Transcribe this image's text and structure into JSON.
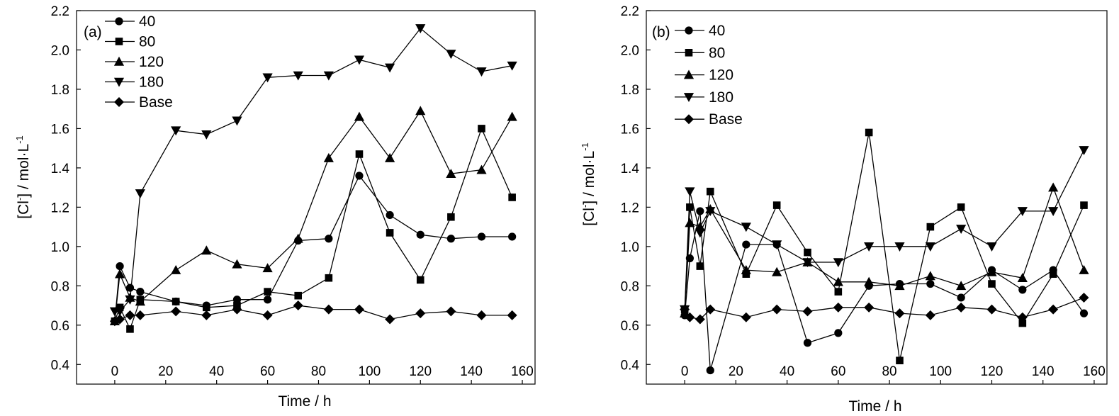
{
  "chart_data": [
    {
      "panel_label": "(a)",
      "type": "line",
      "xlabel": "Time / h",
      "ylabel": "[Cl⁻] / mol·L⁻¹",
      "ylabel_main": "[Cl",
      "ylabel_sup": "-",
      "ylabel_mid": "] / mol·L",
      "ylabel_sup2": "-1",
      "xlim": [
        -15,
        165
      ],
      "ylim": [
        0.3,
        2.2
      ],
      "xticks": [
        "0",
        "20",
        "40",
        "60",
        "80",
        "100",
        "120",
        "140",
        "160"
      ],
      "yticks": [
        "0.4",
        "0.6",
        "0.8",
        "1.0",
        "1.2",
        "1.4",
        "1.6",
        "1.8",
        "2.0",
        "2.2"
      ],
      "legend_position": "top-left",
      "series": [
        {
          "name": "40",
          "marker": "circle",
          "x": [
            0,
            2,
            6,
            10,
            24,
            36,
            48,
            60,
            72,
            84,
            96,
            108,
            120,
            132,
            144,
            156
          ],
          "values": [
            0.62,
            0.9,
            0.79,
            0.77,
            0.72,
            0.7,
            0.73,
            0.73,
            1.03,
            1.04,
            1.36,
            1.16,
            1.06,
            1.04,
            1.05,
            1.05
          ]
        },
        {
          "name": "80",
          "marker": "square",
          "x": [
            0,
            2,
            6,
            10,
            24,
            36,
            48,
            60,
            72,
            84,
            96,
            108,
            120,
            132,
            144,
            156
          ],
          "values": [
            0.62,
            0.69,
            0.58,
            0.73,
            0.72,
            0.69,
            0.7,
            0.77,
            0.75,
            0.84,
            1.47,
            1.07,
            0.83,
            1.15,
            1.6,
            1.25
          ]
        },
        {
          "name": "120",
          "marker": "triangle-up",
          "x": [
            0,
            2,
            6,
            10,
            24,
            36,
            48,
            60,
            72,
            84,
            96,
            108,
            120,
            132,
            144,
            156
          ],
          "values": [
            0.62,
            0.86,
            0.74,
            0.72,
            0.88,
            0.98,
            0.91,
            0.89,
            1.04,
            1.45,
            1.66,
            1.45,
            1.69,
            1.37,
            1.39,
            1.66
          ]
        },
        {
          "name": "180",
          "marker": "triangle-down",
          "x": [
            0,
            2,
            6,
            10,
            24,
            36,
            48,
            60,
            72,
            84,
            96,
            108,
            120,
            132,
            144,
            156
          ],
          "values": [
            0.67,
            0.67,
            0.73,
            1.27,
            1.59,
            1.57,
            1.64,
            1.86,
            1.87,
            1.87,
            1.95,
            1.91,
            2.11,
            1.98,
            1.89,
            1.92
          ]
        },
        {
          "name": "Base",
          "marker": "diamond",
          "x": [
            0,
            2,
            6,
            10,
            24,
            36,
            48,
            60,
            72,
            84,
            96,
            108,
            120,
            132,
            144,
            156
          ],
          "values": [
            0.62,
            0.63,
            0.65,
            0.65,
            0.67,
            0.65,
            0.68,
            0.65,
            0.7,
            0.68,
            0.68,
            0.63,
            0.66,
            0.67,
            0.65,
            0.65
          ]
        }
      ]
    },
    {
      "panel_label": "(b)",
      "type": "line",
      "xlabel": "Time / h",
      "ylabel": "[Cl⁻] / mol·L⁻¹",
      "ylabel_main": "[Cl",
      "ylabel_sup": "-",
      "ylabel_mid": "] / mol·L",
      "ylabel_sup2": "-1",
      "xlim": [
        -15,
        165
      ],
      "ylim": [
        0.3,
        2.2
      ],
      "xticks": [
        "0",
        "20",
        "40",
        "60",
        "80",
        "100",
        "120",
        "140",
        "160"
      ],
      "yticks": [
        "0.4",
        "0.6",
        "0.8",
        "1.0",
        "1.2",
        "1.4",
        "1.6",
        "1.8",
        "2.0",
        "2.2"
      ],
      "legend_position": "top-left",
      "series": [
        {
          "name": "40",
          "marker": "circle",
          "x": [
            0,
            2,
            6,
            10,
            24,
            36,
            48,
            60,
            72,
            84,
            96,
            108,
            120,
            132,
            144,
            156
          ],
          "values": [
            0.65,
            0.94,
            1.18,
            0.37,
            1.01,
            1.01,
            0.51,
            0.56,
            0.8,
            0.81,
            0.81,
            0.74,
            0.88,
            0.78,
            0.88,
            0.66
          ]
        },
        {
          "name": "80",
          "marker": "square",
          "x": [
            0,
            2,
            6,
            10,
            24,
            36,
            48,
            60,
            72,
            84,
            96,
            108,
            120,
            132,
            144,
            156
          ],
          "values": [
            0.68,
            1.2,
            0.9,
            1.28,
            0.86,
            1.21,
            0.97,
            0.77,
            1.58,
            0.42,
            1.1,
            1.2,
            0.81,
            0.61,
            0.86,
            1.21
          ]
        },
        {
          "name": "120",
          "marker": "triangle-up",
          "x": [
            0,
            2,
            6,
            10,
            24,
            36,
            48,
            60,
            72,
            84,
            96,
            108,
            120,
            132,
            144,
            156
          ],
          "values": [
            0.66,
            1.12,
            1.1,
            1.19,
            0.88,
            0.87,
            0.92,
            0.82,
            0.82,
            0.8,
            0.85,
            0.8,
            0.87,
            0.84,
            1.3,
            0.88
          ]
        },
        {
          "name": "180",
          "marker": "triangle-down",
          "x": [
            0,
            2,
            6,
            10,
            24,
            36,
            48,
            60,
            72,
            84,
            96,
            108,
            120,
            132,
            144,
            156
          ],
          "values": [
            0.68,
            1.28,
            1.07,
            1.18,
            1.1,
            1.01,
            0.92,
            0.92,
            1.0,
            1.0,
            1.0,
            1.09,
            1.0,
            1.18,
            1.18,
            1.49
          ]
        },
        {
          "name": "Base",
          "marker": "diamond",
          "x": [
            0,
            2,
            6,
            10,
            24,
            36,
            48,
            60,
            72,
            84,
            96,
            108,
            120,
            132,
            144,
            156
          ],
          "values": [
            0.68,
            0.64,
            0.63,
            0.68,
            0.64,
            0.68,
            0.67,
            0.69,
            0.69,
            0.66,
            0.65,
            0.69,
            0.68,
            0.64,
            0.68,
            0.74
          ]
        }
      ]
    }
  ]
}
